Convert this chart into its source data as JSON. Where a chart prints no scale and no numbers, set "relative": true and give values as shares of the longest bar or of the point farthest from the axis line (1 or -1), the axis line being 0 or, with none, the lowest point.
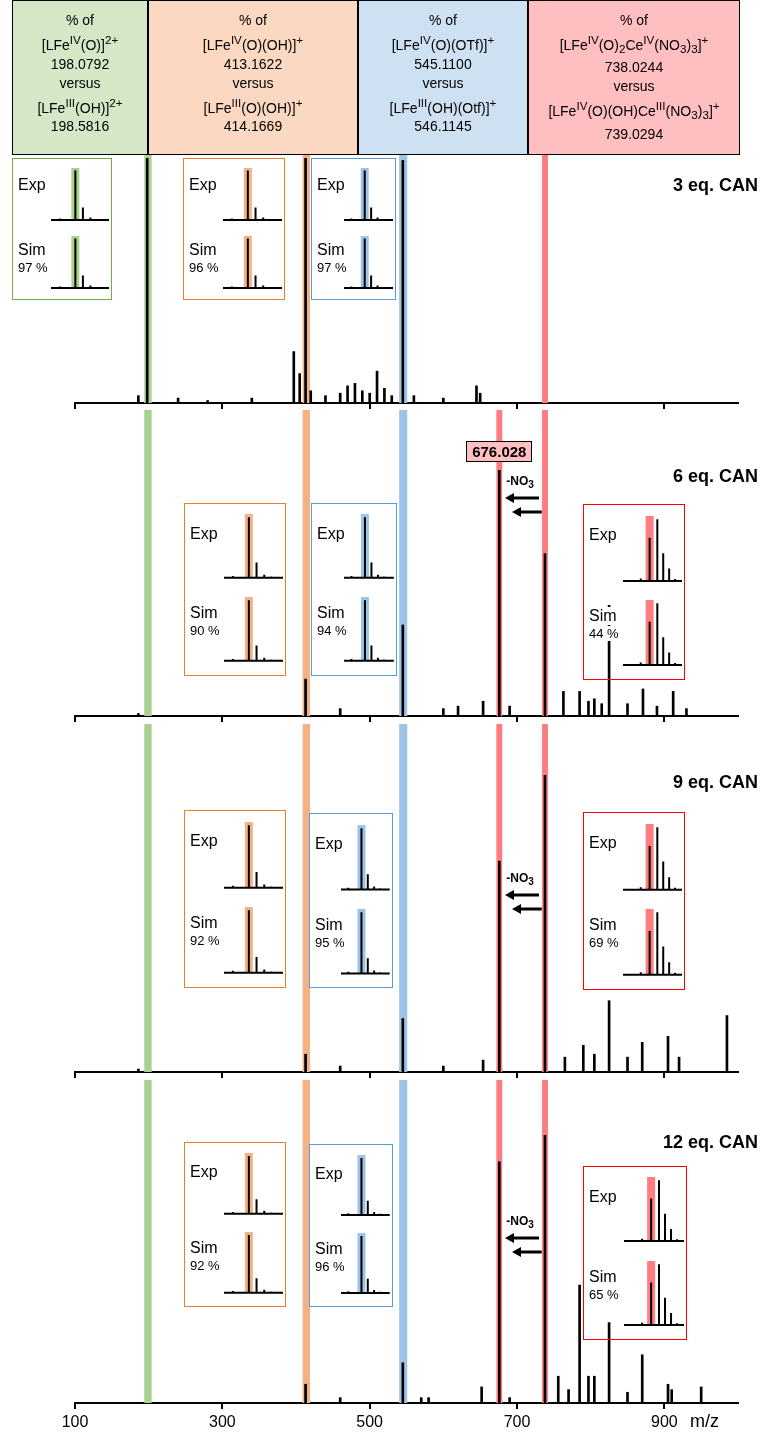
{
  "chart_data": [
    {
      "type": "bar",
      "title": "3 eq. CAN",
      "relative": true,
      "color": "#000000",
      "xlim": [
        100,
        1000
      ],
      "xticks": [
        100,
        300,
        500,
        700,
        900
      ],
      "tick_labels": false,
      "x": [
        186,
        198,
        240,
        280,
        340,
        397,
        405,
        413,
        420,
        440,
        460,
        470,
        480,
        490,
        500,
        510,
        520,
        530,
        545,
        560,
        600,
        645,
        650
      ],
      "values": [
        0.03,
        1.0,
        0.02,
        0.01,
        0.02,
        0.21,
        0.12,
        1.0,
        0.05,
        0.03,
        0.04,
        0.07,
        0.08,
        0.05,
        0.04,
        0.13,
        0.06,
        0.03,
        0.99,
        0.03,
        0.02,
        0.07,
        0.04
      ],
      "bands": [
        {
          "axis": "x",
          "from": 194,
          "to": 204,
          "color": "#a9d18e",
          "label": "% of\n[LFe$^{IV}$(O)]$^{2+}$\n198.0792\nversus\n[LFe$^{III}$(OH)]$^{2+}$\n198.5816"
        },
        {
          "axis": "x",
          "from": 409,
          "to": 419,
          "color": "#f4b183",
          "label": "% of\n[LFe$^{IV}$(O)(OH)]$^{+}$\n413.1622\nversus\n[LFe$^{III}$(O)(OH)]$^{+}$\n414.1669"
        },
        {
          "axis": "x",
          "from": 540,
          "to": 551,
          "color": "#9dc3e6",
          "label": "% of\n[LFe$^{IV}$(O)(OTf)]$^{+}$\n545.1100\nversus\n[LFe$^{III}$(OH)(Otf)]$^{+}$\n546.1145"
        },
        {
          "axis": "x",
          "from": 734,
          "to": 742,
          "color": "#ff7c80",
          "label": "% of\n[LFe$^{IV}$(O)$_{2}$Ce$^{IV}$(NO$_{3}$)$_{3}$]$^{+}$\n738.0244\nversus\n[LFe$^{IV}$(O)(OH)Ce$^{III}$(NO$_{3}$)$_{3}$]$^{+}$\n739.0294"
        }
      ],
      "annotations": [
        "Exp",
        "Sim",
        "97 %",
        "Exp",
        "Sim",
        "96 %",
        "Exp",
        "Sim",
        "97 %"
      ]
    },
    {
      "type": "bar",
      "title": "6 eq. CAN",
      "relative": true,
      "color": "#000000",
      "xlim": [
        100,
        1000
      ],
      "xticks": [
        100,
        300,
        500,
        700,
        900
      ],
      "tick_labels": false,
      "x": [
        186,
        413,
        460,
        545,
        600,
        620,
        654,
        676,
        690,
        738,
        763,
        785,
        797,
        805,
        815,
        825,
        850,
        871,
        890,
        912,
        930
      ],
      "values": [
        0.01,
        0.15,
        0.03,
        0.37,
        0.03,
        0.04,
        0.06,
        1.0,
        0.04,
        0.66,
        0.1,
        0.1,
        0.06,
        0.07,
        0.05,
        0.45,
        0.05,
        0.11,
        0.04,
        0.1,
        0.03
      ],
      "bands": [
        {
          "axis": "x",
          "from": 194,
          "to": 204,
          "color": "#a9d18e"
        },
        {
          "axis": "x",
          "from": 409,
          "to": 419,
          "color": "#f4b183"
        },
        {
          "axis": "x",
          "from": 540,
          "to": 551,
          "color": "#9dc3e6"
        },
        {
          "axis": "x",
          "from": 672,
          "to": 680,
          "color": "#ff7c80",
          "label": "676.028"
        },
        {
          "axis": "x",
          "from": 734,
          "to": 742,
          "color": "#ff7c80"
        }
      ],
      "annotations": [
        "-NO$_{3}$",
        "Exp",
        "Sim",
        "90 %",
        "Exp",
        "Sim",
        "94 %",
        "Exp",
        "Sim",
        "44 %"
      ]
    },
    {
      "type": "bar",
      "title": "9 eq. CAN",
      "relative": true,
      "color": "#000000",
      "xlim": [
        100,
        1000
      ],
      "xticks": [
        100,
        300,
        500,
        700,
        900
      ],
      "tick_labels": false,
      "x": [
        186,
        413,
        460,
        545,
        600,
        654,
        676,
        738,
        765,
        790,
        805,
        825,
        850,
        870,
        905,
        920,
        985
      ],
      "values": [
        0.01,
        0.06,
        0.02,
        0.18,
        0.02,
        0.04,
        0.71,
        1.0,
        0.05,
        0.09,
        0.06,
        0.24,
        0.05,
        0.1,
        0.12,
        0.05,
        0.19
      ],
      "bands": [
        {
          "axis": "x",
          "from": 194,
          "to": 204,
          "color": "#a9d18e"
        },
        {
          "axis": "x",
          "from": 409,
          "to": 419,
          "color": "#f4b183"
        },
        {
          "axis": "x",
          "from": 540,
          "to": 551,
          "color": "#9dc3e6"
        },
        {
          "axis": "x",
          "from": 672,
          "to": 680,
          "color": "#ff7c80"
        },
        {
          "axis": "x",
          "from": 734,
          "to": 742,
          "color": "#ff7c80"
        }
      ],
      "annotations": [
        "-NO$_{3}$",
        "Exp",
        "Sim",
        "92 %",
        "Exp",
        "Sim",
        "95 %",
        "Exp",
        "Sim",
        "69 %"
      ]
    },
    {
      "type": "bar",
      "title": "12 eq. CAN",
      "xlabel": "m/z",
      "relative": true,
      "color": "#000000",
      "xlim": [
        100,
        1000
      ],
      "xticks": [
        100,
        300,
        500,
        700,
        900
      ],
      "tick_labels": "x",
      "x": [
        413,
        460,
        545,
        570,
        580,
        652,
        676,
        690,
        738,
        756,
        770,
        785,
        797,
        805,
        825,
        850,
        870,
        905,
        910,
        950
      ],
      "values": [
        0.07,
        0.02,
        0.15,
        0.02,
        0.02,
        0.06,
        0.9,
        0.02,
        1.0,
        0.1,
        0.05,
        0.44,
        0.1,
        0.1,
        0.3,
        0.04,
        0.18,
        0.07,
        0.05,
        0.06
      ],
      "bands": [
        {
          "axis": "x",
          "from": 194,
          "to": 204,
          "color": "#a9d18e"
        },
        {
          "axis": "x",
          "from": 409,
          "to": 419,
          "color": "#f4b183"
        },
        {
          "axis": "x",
          "from": 540,
          "to": 551,
          "color": "#9dc3e6"
        },
        {
          "axis": "x",
          "from": 672,
          "to": 680,
          "color": "#ff7c80"
        },
        {
          "axis": "x",
          "from": 734,
          "to": 742,
          "color": "#ff7c80"
        }
      ],
      "annotations": [
        "-NO$_{3}$",
        "Exp",
        "Sim",
        "92 %",
        "Exp",
        "Sim",
        "96 %",
        "Exp",
        "Sim",
        "65 %"
      ]
    }
  ]
}
